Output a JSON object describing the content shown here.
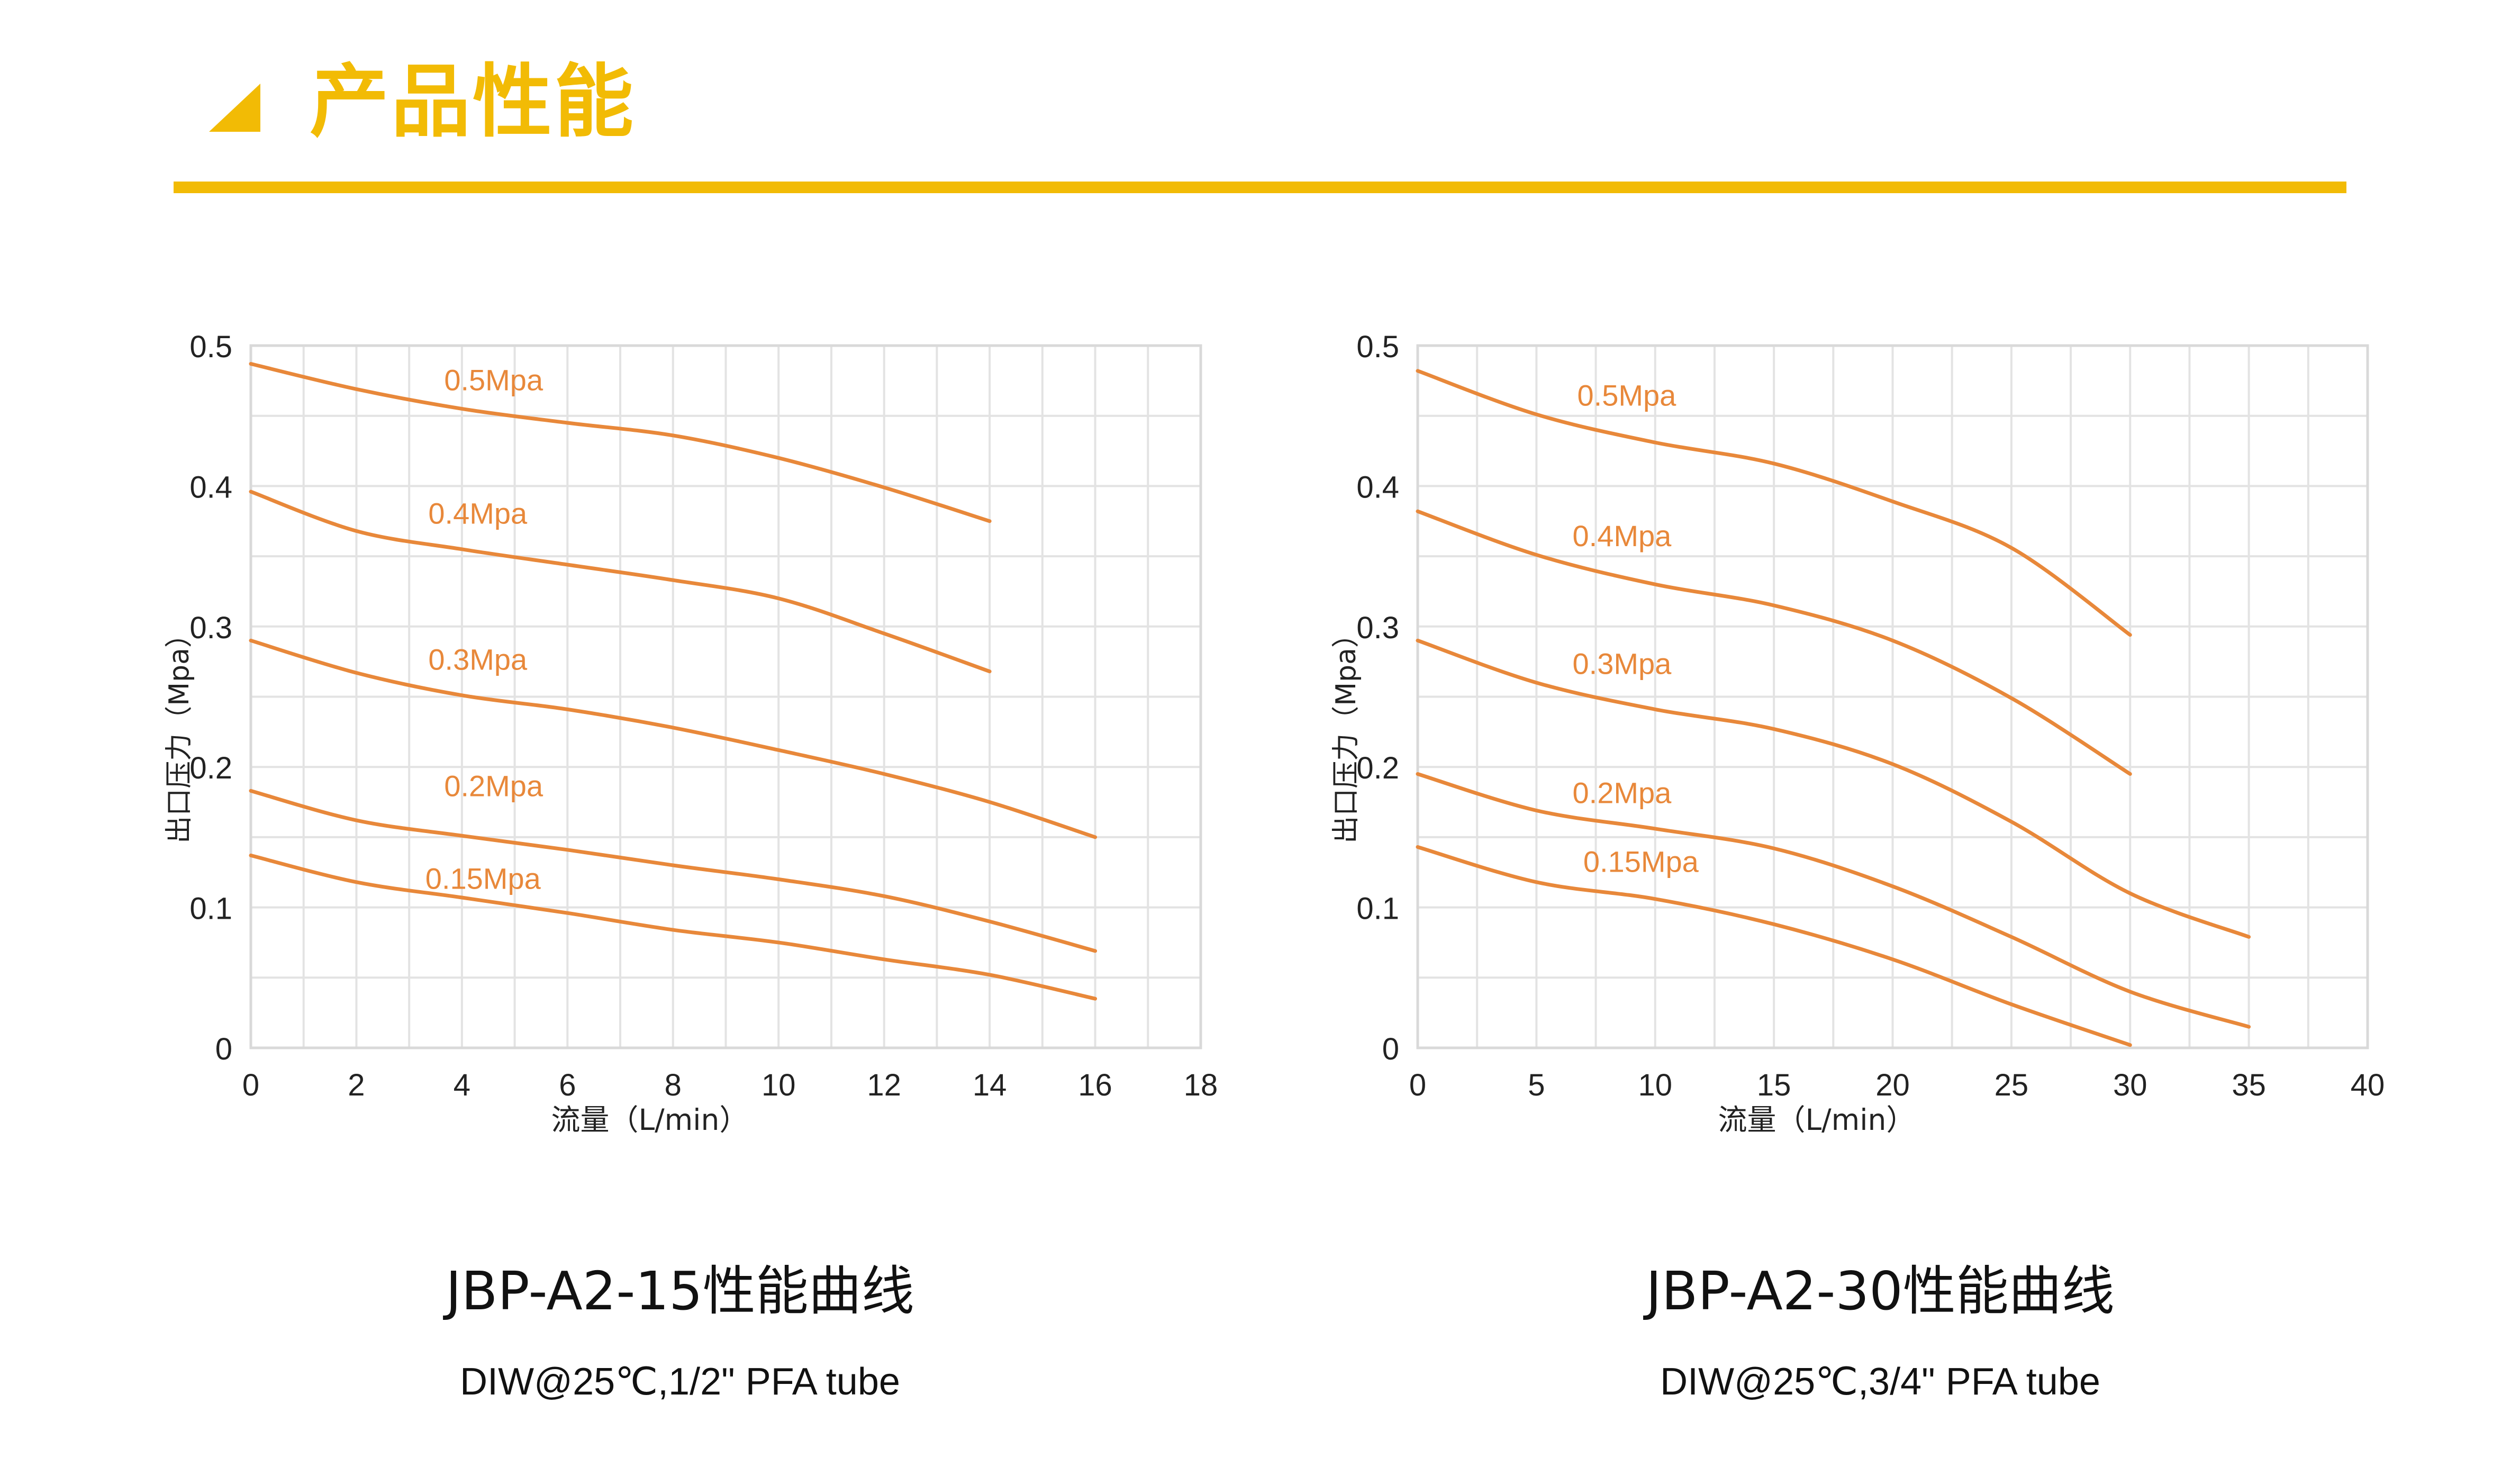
{
  "header": {
    "title": "产品性能",
    "accent_color": "#F2BB05"
  },
  "chart_data": [
    {
      "type": "line",
      "title": "JBP-A2-15性能曲线",
      "subtitle": "DIW@25℃,1/2\" PFA tube",
      "xlabel": "流量（L/min）",
      "ylabel": "出口压力（Mpa）",
      "xlim": [
        0,
        18
      ],
      "ylim": [
        0,
        0.5
      ],
      "xticks": [
        "0",
        "2",
        "4",
        "6",
        "8",
        "10",
        "12",
        "14",
        "16",
        "18"
      ],
      "yticks": [
        "0",
        "0.1",
        "0.2",
        "0.3",
        "0.4",
        "0.5"
      ],
      "grid": true,
      "line_color": "#E8883A",
      "series": [
        {
          "name": "0.5Mpa",
          "x": [
            0,
            2,
            4,
            6,
            8,
            10,
            12,
            14
          ],
          "y": [
            0.487,
            0.469,
            0.455,
            0.445,
            0.436,
            0.42,
            0.399,
            0.375
          ]
        },
        {
          "name": "0.4Mpa",
          "x": [
            0,
            2,
            4,
            6,
            8,
            10,
            12,
            14
          ],
          "y": [
            0.396,
            0.368,
            0.355,
            0.344,
            0.333,
            0.32,
            0.295,
            0.268
          ]
        },
        {
          "name": "0.3Mpa",
          "x": [
            0,
            2,
            4,
            6,
            8,
            10,
            12,
            14,
            16
          ],
          "y": [
            0.29,
            0.267,
            0.251,
            0.241,
            0.228,
            0.212,
            0.195,
            0.175,
            0.15
          ]
        },
        {
          "name": "0.2Mpa",
          "x": [
            0,
            2,
            4,
            6,
            8,
            10,
            12,
            14,
            16
          ],
          "y": [
            0.183,
            0.162,
            0.151,
            0.141,
            0.13,
            0.12,
            0.108,
            0.09,
            0.069
          ]
        },
        {
          "name": "0.15Mpa",
          "x": [
            0,
            2,
            4,
            6,
            8,
            10,
            12,
            14,
            16
          ],
          "y": [
            0.137,
            0.118,
            0.107,
            0.096,
            0.084,
            0.075,
            0.063,
            0.052,
            0.035
          ]
        }
      ],
      "annotations": [
        {
          "text": "0.5Mpa",
          "x": 4.6,
          "y": 0.475
        },
        {
          "text": "0.4Mpa",
          "x": 4.3,
          "y": 0.38
        },
        {
          "text": "0.3Mpa",
          "x": 4.3,
          "y": 0.276
        },
        {
          "text": "0.2Mpa",
          "x": 4.6,
          "y": 0.186
        },
        {
          "text": "0.15Mpa",
          "x": 4.4,
          "y": 0.12
        }
      ]
    },
    {
      "type": "line",
      "title": "JBP-A2-30性能曲线",
      "subtitle": "DIW@25℃,3/4\" PFA tube",
      "xlabel": "流量（L/min）",
      "ylabel": "出口压力（Mpa）",
      "xlim": [
        0,
        40
      ],
      "ylim": [
        0,
        0.5
      ],
      "xticks": [
        "0",
        "5",
        "10",
        "15",
        "20",
        "25",
        "30",
        "35",
        "40"
      ],
      "yticks": [
        "0",
        "0.1",
        "0.2",
        "0.3",
        "0.4",
        "0.5"
      ],
      "grid": true,
      "line_color": "#E8883A",
      "series": [
        {
          "name": "0.5Mpa",
          "x": [
            0,
            5,
            10,
            15,
            20,
            25,
            30
          ],
          "y": [
            0.482,
            0.451,
            0.431,
            0.416,
            0.389,
            0.356,
            0.294
          ]
        },
        {
          "name": "0.4Mpa",
          "x": [
            0,
            5,
            10,
            15,
            20,
            25,
            30
          ],
          "y": [
            0.382,
            0.351,
            0.33,
            0.315,
            0.29,
            0.249,
            0.195
          ]
        },
        {
          "name": "0.3Mpa",
          "x": [
            0,
            5,
            10,
            15,
            20,
            25,
            30,
            35
          ],
          "y": [
            0.29,
            0.26,
            0.241,
            0.227,
            0.202,
            0.161,
            0.11,
            0.079
          ]
        },
        {
          "name": "0.2Mpa",
          "x": [
            0,
            5,
            10,
            15,
            20,
            25,
            30,
            35
          ],
          "y": [
            0.195,
            0.169,
            0.156,
            0.142,
            0.115,
            0.079,
            0.04,
            0.015
          ]
        },
        {
          "name": "0.15Mpa",
          "x": [
            0,
            5,
            10,
            15,
            20,
            25,
            30
          ],
          "y": [
            0.143,
            0.118,
            0.106,
            0.088,
            0.063,
            0.031,
            0.002
          ]
        }
      ],
      "annotations": [
        {
          "text": "0.5Mpa",
          "x": 8.8,
          "y": 0.464
        },
        {
          "text": "0.4Mpa",
          "x": 8.6,
          "y": 0.364
        },
        {
          "text": "0.3Mpa",
          "x": 8.6,
          "y": 0.273
        },
        {
          "text": "0.2Mpa",
          "x": 8.6,
          "y": 0.181
        },
        {
          "text": "0.15Mpa",
          "x": 9.4,
          "y": 0.132
        }
      ]
    }
  ]
}
